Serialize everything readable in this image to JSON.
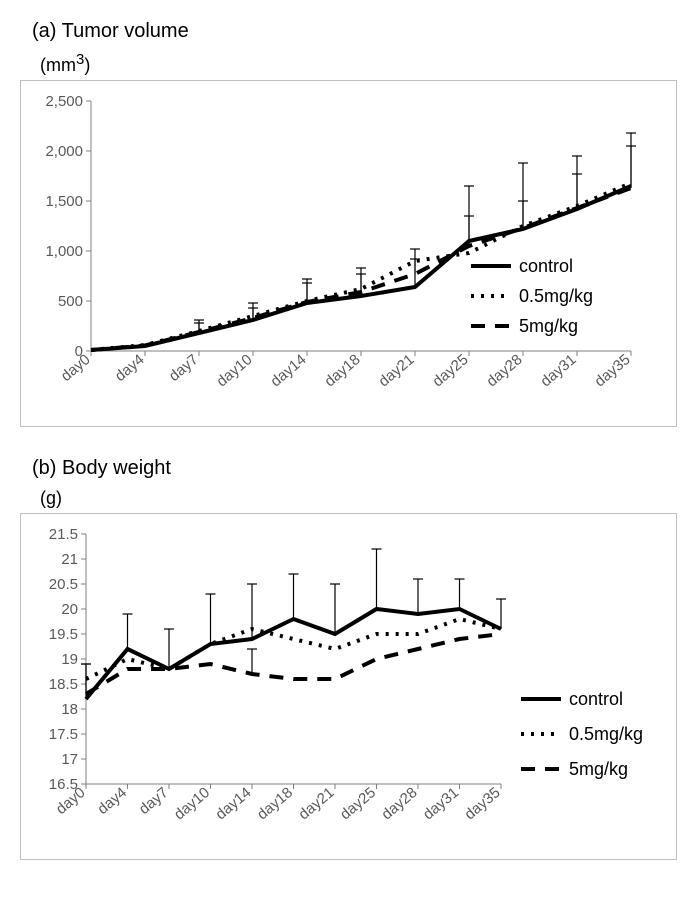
{
  "chart_a": {
    "title": "(a) Tumor volume",
    "unit": "(mm",
    "unit_sup": "3",
    "unit_close": ")",
    "type": "line",
    "categories": [
      "day0",
      "day4",
      "day7",
      "day10",
      "day14",
      "day18",
      "day21",
      "day25",
      "day28",
      "day31",
      "day35"
    ],
    "ylim": [
      0,
      2500
    ],
    "yticks": [
      0,
      500,
      1000,
      1500,
      2000,
      2500
    ],
    "ytick_labels": [
      "0",
      "500",
      "1,000",
      "1,500",
      "2,000",
      "2,500"
    ],
    "series": [
      {
        "name": "control",
        "style": "solid",
        "values": [
          10,
          50,
          180,
          310,
          480,
          550,
          640,
          1100,
          1220,
          1420,
          1650
        ],
        "err": [
          0,
          0,
          100,
          120,
          200,
          220,
          280,
          250,
          280,
          350,
          400
        ]
      },
      {
        "name": "0.5mg/kg",
        "style": "dotted",
        "values": [
          10,
          60,
          200,
          350,
          500,
          620,
          900,
          980,
          1250,
          1450,
          1680
        ],
        "err": [
          0,
          0,
          0,
          0,
          0,
          0,
          0,
          0,
          0,
          0,
          0
        ]
      },
      {
        "name": "5mg/kg",
        "style": "dashed",
        "values": [
          10,
          55,
          190,
          330,
          490,
          590,
          770,
          1050,
          1230,
          1430,
          1630
        ],
        "err": [
          0,
          0,
          120,
          150,
          230,
          240,
          250,
          600,
          650,
          520,
          550
        ]
      }
    ],
    "colors": {
      "line": "#000000",
      "axis": "#808080",
      "tick": "#595959",
      "bg": "#ffffff",
      "border": "#bfbfbf"
    },
    "legend_pos": "right-lower",
    "title_fontsize": 20,
    "tick_fontsize": 15,
    "line_width_solid": 4,
    "line_width_dotted": 4,
    "line_width_dashed": 4
  },
  "chart_b": {
    "title": "(b) Body weight",
    "unit": "(g)",
    "type": "line",
    "categories": [
      "day0",
      "day4",
      "day7",
      "day10",
      "day14",
      "day18",
      "day21",
      "day25",
      "day28",
      "day31",
      "day35"
    ],
    "ylim": [
      16.5,
      21.5
    ],
    "yticks": [
      16.5,
      17,
      17.5,
      18,
      18.5,
      19,
      19.5,
      20,
      20.5,
      21,
      21.5
    ],
    "ytick_labels": [
      "16.5",
      "17",
      "17.5",
      "18",
      "18.5",
      "19",
      "19.5",
      "20",
      "20.5",
      "21",
      "21.5"
    ],
    "series": [
      {
        "name": "control",
        "style": "solid",
        "values": [
          18.2,
          19.2,
          18.8,
          19.3,
          19.4,
          19.8,
          19.5,
          20.0,
          19.9,
          20.0,
          19.6
        ],
        "err": [
          0.7,
          0.7,
          0.8,
          1.0,
          1.1,
          0.9,
          1.0,
          1.2,
          0.7,
          0.6,
          0.6
        ]
      },
      {
        "name": "0.5mg/kg",
        "style": "dotted",
        "values": [
          18.6,
          19.0,
          18.8,
          19.3,
          19.6,
          19.4,
          19.2,
          19.5,
          19.5,
          19.8,
          19.6
        ],
        "err": [
          0,
          0,
          0,
          0,
          0,
          0,
          0,
          0,
          0,
          0,
          0
        ]
      },
      {
        "name": "5mg/kg",
        "style": "dashed",
        "values": [
          18.3,
          18.8,
          18.8,
          18.9,
          18.7,
          18.6,
          18.6,
          19.0,
          19.2,
          19.4,
          19.5
        ],
        "err": [
          0.6,
          0,
          0,
          0,
          0.5,
          0,
          0,
          0,
          0,
          0,
          0
        ]
      }
    ],
    "colors": {
      "line": "#000000",
      "axis": "#808080",
      "tick": "#595959",
      "bg": "#ffffff",
      "border": "#bfbfbf"
    },
    "legend_pos": "right-outside",
    "title_fontsize": 20,
    "tick_fontsize": 15,
    "line_width_solid": 4,
    "line_width_dotted": 4,
    "line_width_dashed": 4
  }
}
